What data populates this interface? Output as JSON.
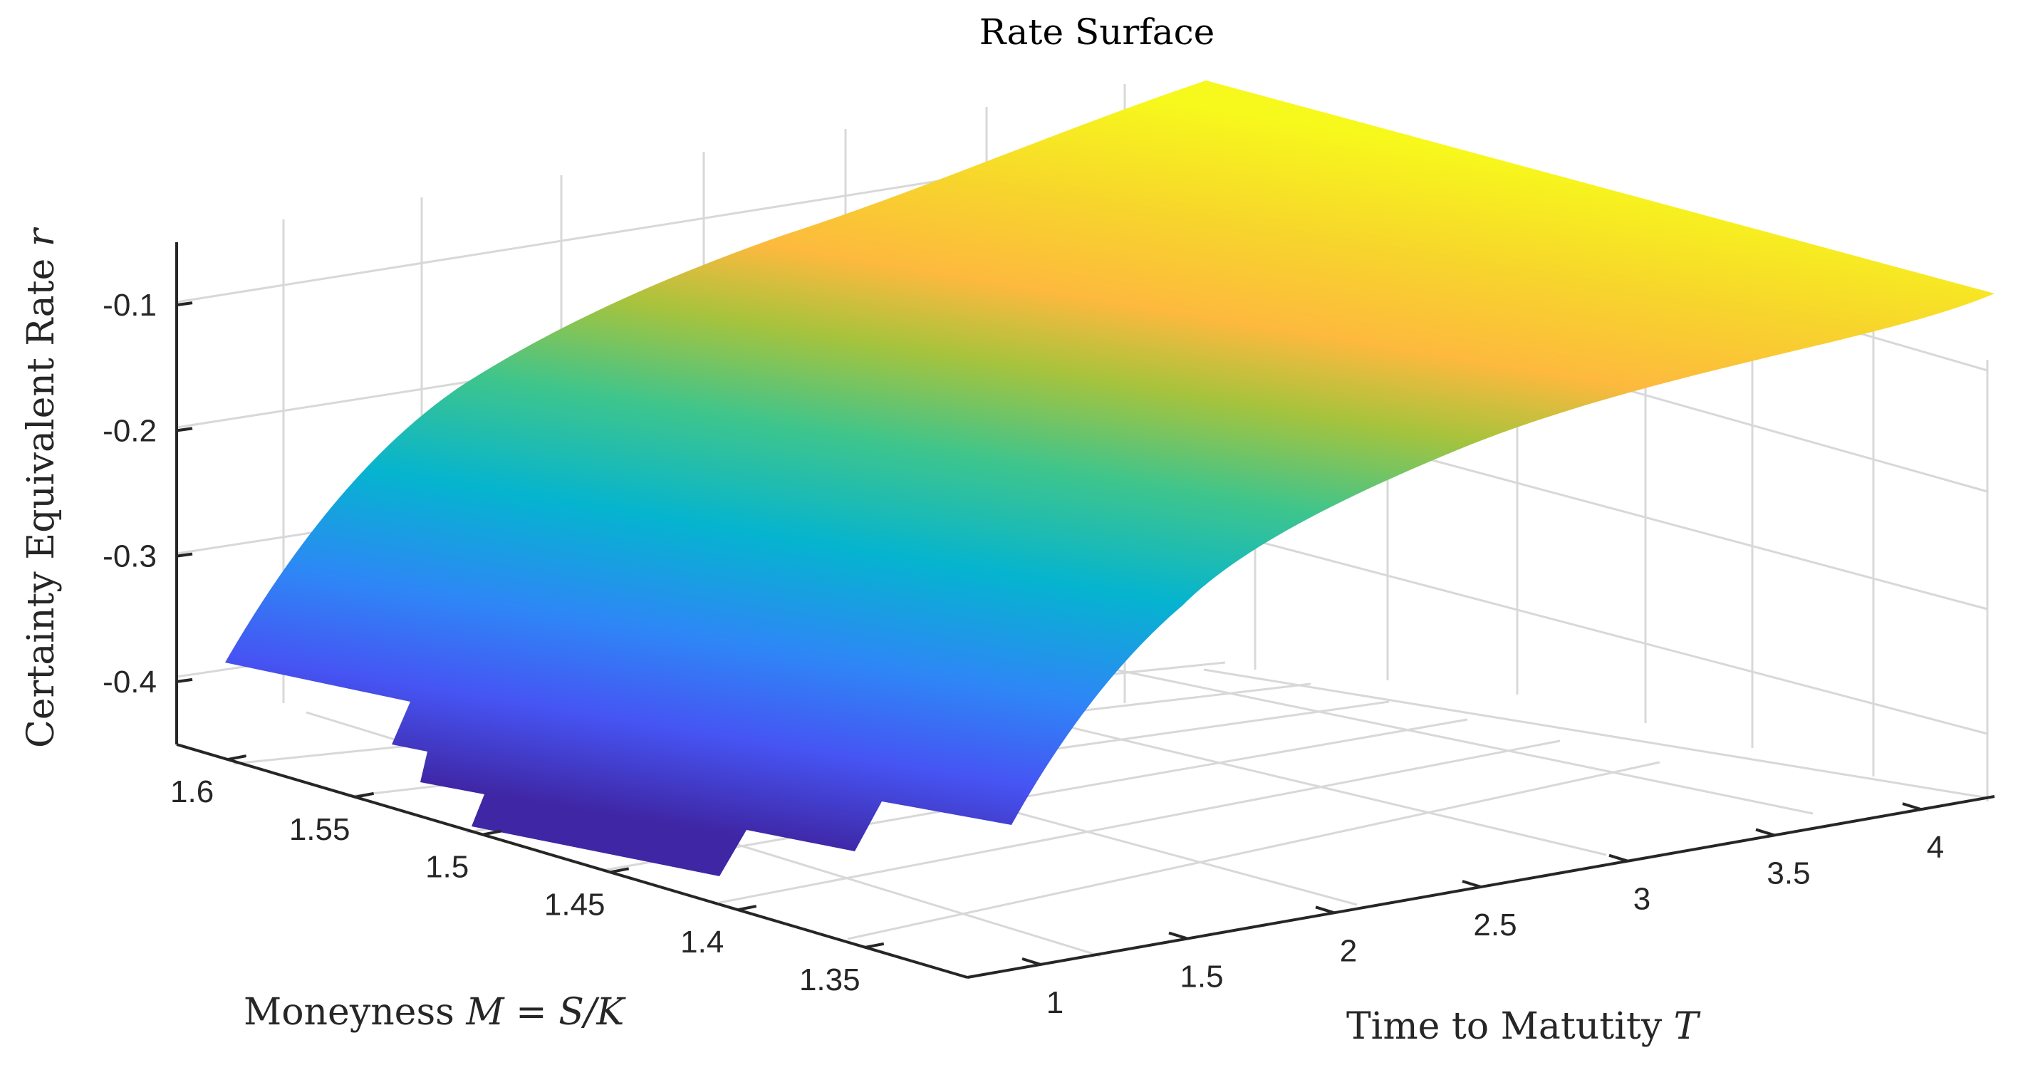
{
  "chart_data": {
    "type": "surface",
    "title": "Rate Surface",
    "xlabel": {
      "text": "Moneyness ",
      "math": "M = S/K"
    },
    "ylabel": {
      "text": "Time to Matutity ",
      "math": "T"
    },
    "zlabel": {
      "text": "Certainty Equivalent Rate ",
      "math": "r"
    },
    "x_axis": {
      "name": "Moneyness",
      "ticks": [
        1.6,
        1.55,
        1.5,
        1.45,
        1.4,
        1.35
      ],
      "range": [
        1.31,
        1.62
      ]
    },
    "y_axis": {
      "name": "Time to Maturity",
      "ticks": [
        1,
        1.5,
        2,
        2.5,
        3,
        3.5,
        4
      ],
      "range": [
        0.75,
        4.25
      ]
    },
    "z_axis": {
      "name": "Rate",
      "ticks": [
        -0.1,
        -0.2,
        -0.3,
        -0.4
      ],
      "range": [
        -0.45,
        -0.05
      ]
    },
    "grid": true,
    "colormap": "parula",
    "surface_summary": {
      "min_rate_near": {
        "moneyness": 1.45,
        "maturity": 1.0,
        "rate": -0.46
      },
      "max_rate_near": {
        "moneyness": 1.62,
        "maturity": 4.25,
        "rate": -0.05
      }
    }
  }
}
